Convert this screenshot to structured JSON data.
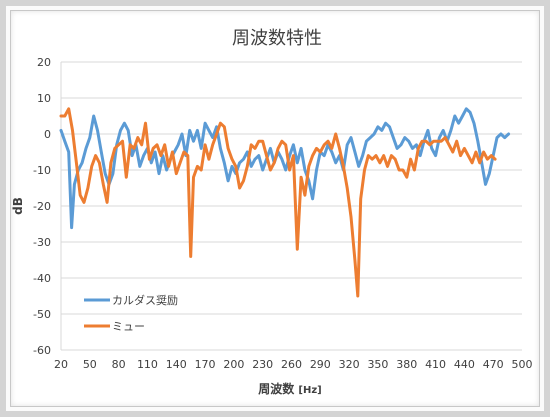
{
  "chart_data": {
    "type": "line",
    "title": "周波数特性",
    "xlabel": "周波数",
    "xlabel_unit": "[Hz]",
    "ylabel": "dB",
    "xlim": [
      20,
      500
    ],
    "ylim": [
      -60,
      20
    ],
    "xticks": [
      20,
      50,
      80,
      110,
      140,
      170,
      200,
      230,
      260,
      290,
      320,
      350,
      380,
      410,
      440,
      470,
      500
    ],
    "yticks": [
      20,
      10,
      0,
      -10,
      -20,
      -30,
      -40,
      -50,
      -60
    ],
    "grid": true,
    "legend_position": "bottom-left",
    "series": [
      {
        "name": "カルダス奨励",
        "color": "#5b9bd5",
        "points": [
          [
            20,
            1
          ],
          [
            24,
            -2
          ],
          [
            28,
            -5
          ],
          [
            31,
            -26
          ],
          [
            34,
            -14
          ],
          [
            38,
            -10
          ],
          [
            42,
            -8
          ],
          [
            46,
            -4
          ],
          [
            50,
            -1
          ],
          [
            54,
            5
          ],
          [
            58,
            1
          ],
          [
            62,
            -5
          ],
          [
            66,
            -11
          ],
          [
            70,
            -14
          ],
          [
            74,
            -11
          ],
          [
            78,
            -3
          ],
          [
            82,
            1
          ],
          [
            86,
            3
          ],
          [
            90,
            1
          ],
          [
            94,
            -6
          ],
          [
            98,
            -3
          ],
          [
            102,
            -9
          ],
          [
            106,
            -6
          ],
          [
            110,
            -4
          ],
          [
            114,
            -8
          ],
          [
            118,
            -5
          ],
          [
            122,
            -11
          ],
          [
            126,
            -6
          ],
          [
            130,
            -10
          ],
          [
            134,
            -7
          ],
          [
            138,
            -5
          ],
          [
            142,
            -3
          ],
          [
            146,
            0
          ],
          [
            150,
            -6
          ],
          [
            154,
            1
          ],
          [
            158,
            -2
          ],
          [
            162,
            1
          ],
          [
            166,
            -4
          ],
          [
            170,
            3
          ],
          [
            174,
            1
          ],
          [
            178,
            -1
          ],
          [
            182,
            2
          ],
          [
            186,
            -4
          ],
          [
            190,
            -8
          ],
          [
            194,
            -13
          ],
          [
            198,
            -9
          ],
          [
            202,
            -11
          ],
          [
            206,
            -8
          ],
          [
            210,
            -7
          ],
          [
            214,
            -5
          ],
          [
            218,
            -9
          ],
          [
            222,
            -7
          ],
          [
            226,
            -6
          ],
          [
            230,
            -10
          ],
          [
            234,
            -7
          ],
          [
            238,
            -4
          ],
          [
            242,
            -8
          ],
          [
            246,
            -5
          ],
          [
            250,
            -7
          ],
          [
            254,
            -10
          ],
          [
            258,
            -6
          ],
          [
            262,
            -3
          ],
          [
            266,
            -8
          ],
          [
            270,
            -4
          ],
          [
            274,
            -10
          ],
          [
            278,
            -13
          ],
          [
            282,
            -18
          ],
          [
            286,
            -10
          ],
          [
            290,
            -5
          ],
          [
            294,
            -6
          ],
          [
            298,
            -3
          ],
          [
            302,
            -5
          ],
          [
            306,
            -8
          ],
          [
            310,
            -6
          ],
          [
            314,
            -10
          ],
          [
            318,
            -3
          ],
          [
            322,
            -1
          ],
          [
            326,
            -5
          ],
          [
            330,
            -9
          ],
          [
            334,
            -6
          ],
          [
            338,
            -2
          ],
          [
            342,
            -1
          ],
          [
            346,
            0
          ],
          [
            350,
            2
          ],
          [
            354,
            1
          ],
          [
            358,
            3
          ],
          [
            362,
            2
          ],
          [
            366,
            -1
          ],
          [
            370,
            -4
          ],
          [
            374,
            -3
          ],
          [
            378,
            -1
          ],
          [
            382,
            -2
          ],
          [
            386,
            -4
          ],
          [
            390,
            -3
          ],
          [
            394,
            -6
          ],
          [
            398,
            -2
          ],
          [
            402,
            1
          ],
          [
            406,
            -4
          ],
          [
            410,
            -6
          ],
          [
            414,
            -1
          ],
          [
            418,
            1
          ],
          [
            422,
            -2
          ],
          [
            426,
            1
          ],
          [
            430,
            5
          ],
          [
            434,
            3
          ],
          [
            438,
            5
          ],
          [
            442,
            7
          ],
          [
            446,
            6
          ],
          [
            450,
            3
          ],
          [
            454,
            -2
          ],
          [
            458,
            -8
          ],
          [
            462,
            -14
          ],
          [
            466,
            -11
          ],
          [
            470,
            -6
          ],
          [
            474,
            -1
          ],
          [
            478,
            0
          ],
          [
            482,
            -1
          ],
          [
            486,
            0
          ]
        ]
      },
      {
        "name": "ミュー",
        "color": "#ed7d31",
        "points": [
          [
            20,
            5
          ],
          [
            24,
            5
          ],
          [
            28,
            7
          ],
          [
            32,
            1
          ],
          [
            36,
            -8
          ],
          [
            40,
            -17
          ],
          [
            44,
            -19
          ],
          [
            48,
            -15
          ],
          [
            52,
            -9
          ],
          [
            56,
            -6
          ],
          [
            60,
            -8
          ],
          [
            64,
            -14
          ],
          [
            68,
            -19
          ],
          [
            72,
            -8
          ],
          [
            76,
            -4
          ],
          [
            80,
            -3
          ],
          [
            84,
            -2
          ],
          [
            88,
            -12
          ],
          [
            92,
            -3
          ],
          [
            96,
            -4
          ],
          [
            100,
            -1
          ],
          [
            104,
            -3
          ],
          [
            108,
            3
          ],
          [
            112,
            -7
          ],
          [
            116,
            -4
          ],
          [
            120,
            -3
          ],
          [
            124,
            -6
          ],
          [
            128,
            -3
          ],
          [
            132,
            -9
          ],
          [
            136,
            -5
          ],
          [
            140,
            -11
          ],
          [
            144,
            -8
          ],
          [
            148,
            -5
          ],
          [
            152,
            -6
          ],
          [
            155,
            -34
          ],
          [
            158,
            -12
          ],
          [
            162,
            -9
          ],
          [
            166,
            -10
          ],
          [
            170,
            -3
          ],
          [
            174,
            -7
          ],
          [
            178,
            -3
          ],
          [
            182,
            0
          ],
          [
            186,
            3
          ],
          [
            190,
            2
          ],
          [
            194,
            -4
          ],
          [
            198,
            -7
          ],
          [
            202,
            -9
          ],
          [
            206,
            -15
          ],
          [
            210,
            -13
          ],
          [
            214,
            -9
          ],
          [
            218,
            -3
          ],
          [
            222,
            -4
          ],
          [
            226,
            -2
          ],
          [
            230,
            -2
          ],
          [
            234,
            -6
          ],
          [
            238,
            -10
          ],
          [
            242,
            -8
          ],
          [
            246,
            -4
          ],
          [
            250,
            -2
          ],
          [
            254,
            -3
          ],
          [
            258,
            -10
          ],
          [
            262,
            -6
          ],
          [
            266,
            -32
          ],
          [
            270,
            -12
          ],
          [
            274,
            -17
          ],
          [
            278,
            -9
          ],
          [
            282,
            -6
          ],
          [
            286,
            -4
          ],
          [
            290,
            -5
          ],
          [
            294,
            -3
          ],
          [
            298,
            -2
          ],
          [
            302,
            -4
          ],
          [
            306,
            0
          ],
          [
            310,
            -4
          ],
          [
            314,
            -9
          ],
          [
            318,
            -15
          ],
          [
            322,
            -23
          ],
          [
            326,
            -35
          ],
          [
            329,
            -45
          ],
          [
            332,
            -18
          ],
          [
            336,
            -10
          ],
          [
            340,
            -6
          ],
          [
            344,
            -7
          ],
          [
            348,
            -6
          ],
          [
            352,
            -8
          ],
          [
            356,
            -6
          ],
          [
            360,
            -9
          ],
          [
            364,
            -6
          ],
          [
            368,
            -7
          ],
          [
            372,
            -10
          ],
          [
            376,
            -10
          ],
          [
            380,
            -12
          ],
          [
            384,
            -7
          ],
          [
            388,
            -10
          ],
          [
            392,
            -4
          ],
          [
            396,
            -2
          ],
          [
            400,
            -2
          ],
          [
            404,
            -3
          ],
          [
            408,
            -2
          ],
          [
            412,
            -2
          ],
          [
            416,
            -2
          ],
          [
            420,
            -1
          ],
          [
            424,
            -3
          ],
          [
            428,
            -5
          ],
          [
            432,
            -2
          ],
          [
            436,
            -6
          ],
          [
            440,
            -4
          ],
          [
            444,
            -6
          ],
          [
            448,
            -8
          ],
          [
            452,
            -5
          ],
          [
            456,
            -8
          ],
          [
            460,
            -5
          ],
          [
            464,
            -7
          ],
          [
            468,
            -6
          ],
          [
            472,
            -7
          ]
        ]
      }
    ]
  }
}
